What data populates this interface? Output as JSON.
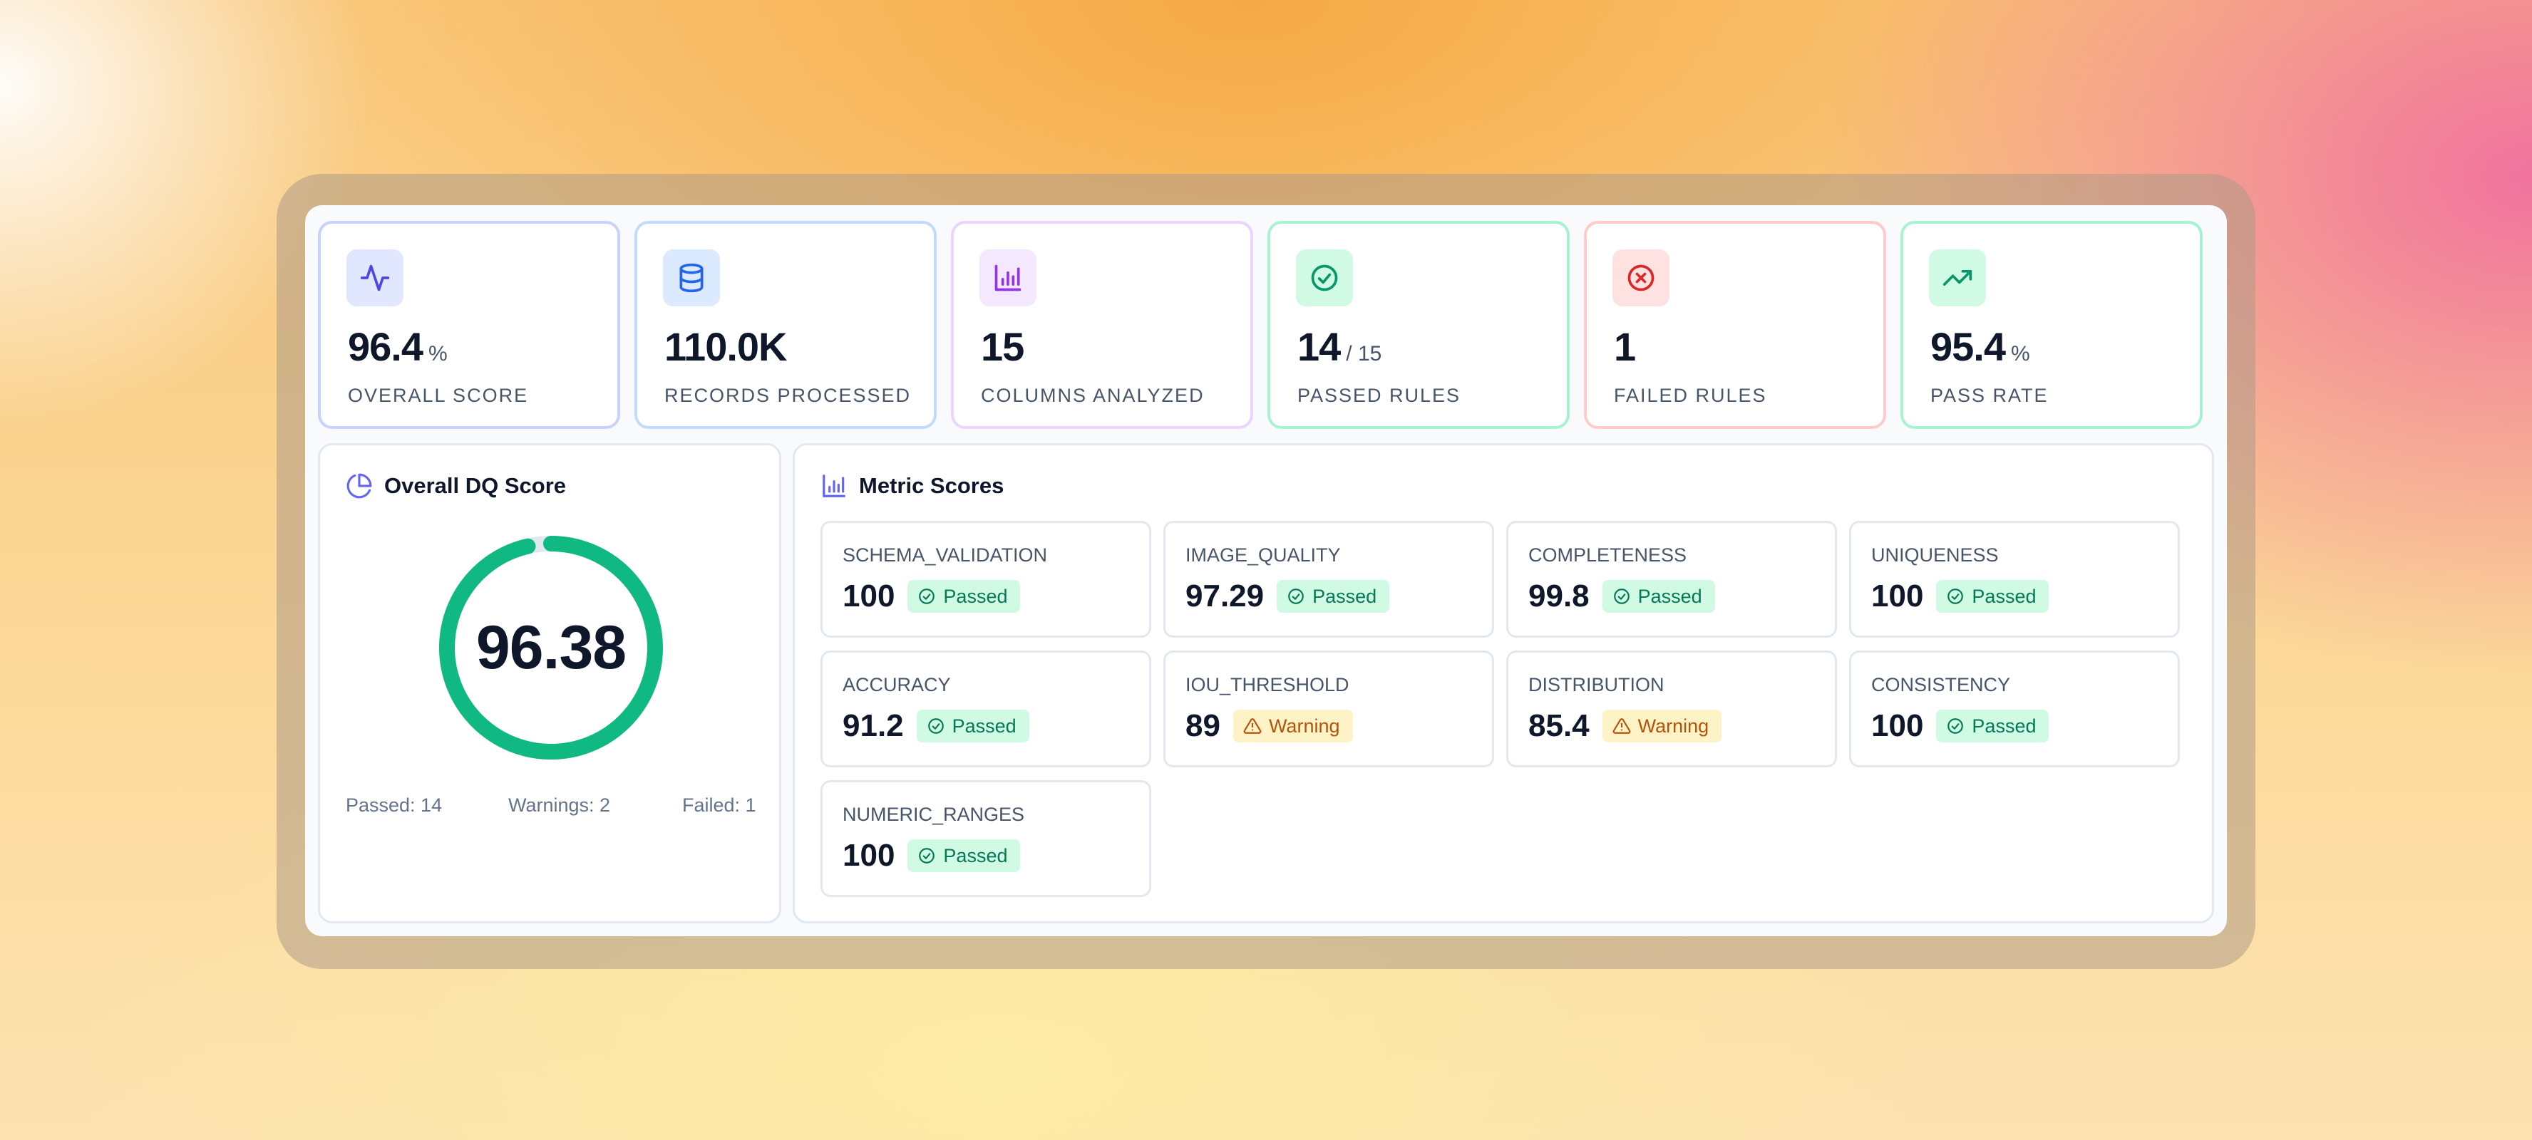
{
  "stats": [
    {
      "icon": "activity-icon",
      "value": "96.4",
      "unit": "%",
      "label": "OVERALL SCORE",
      "border": "#c7d2fe",
      "icon_bg": "#e0e7ff",
      "icon_color": "#4f46e5"
    },
    {
      "icon": "database-icon",
      "value": "110.0K",
      "unit": "",
      "label": "RECORDS PROCESSED",
      "border": "#bfdbfe",
      "icon_bg": "#dbeafe",
      "icon_color": "#2563eb"
    },
    {
      "icon": "bar-chart-icon",
      "value": "15",
      "unit": "",
      "label": "COLUMNS ANALYZED",
      "border": "#e9d5ff",
      "icon_bg": "#f3e8ff",
      "icon_color": "#9333ea"
    },
    {
      "icon": "check-circle-icon",
      "value": "14",
      "unit": "/ 15",
      "label": "PASSED RULES",
      "border": "#a7f3d0",
      "icon_bg": "#d1fae5",
      "icon_color": "#059669"
    },
    {
      "icon": "x-circle-icon",
      "value": "1",
      "unit": "",
      "label": "FAILED RULES",
      "border": "#fecaca",
      "icon_bg": "#fee2e2",
      "icon_color": "#dc2626"
    },
    {
      "icon": "trending-up-icon",
      "value": "95.4",
      "unit": "%",
      "label": "PASS RATE",
      "border": "#a7f3d0",
      "icon_bg": "#d1fae5",
      "icon_color": "#059669"
    }
  ],
  "overall": {
    "title": "Overall DQ Score",
    "icon": "pie-chart-icon",
    "score": "96.38",
    "score_fraction": 0.9638,
    "gauge_color": "#10b981",
    "passed": "Passed: 14",
    "warnings": "Warnings: 2",
    "failed": "Failed: 1"
  },
  "metrics_card": {
    "title": "Metric Scores",
    "icon": "bar-chart-icon",
    "items": [
      {
        "name": "SCHEMA_VALIDATION",
        "value": "100",
        "status": "Passed"
      },
      {
        "name": "IMAGE_QUALITY",
        "value": "97.29",
        "status": "Passed"
      },
      {
        "name": "COMPLETENESS",
        "value": "99.8",
        "status": "Passed"
      },
      {
        "name": "UNIQUENESS",
        "value": "100",
        "status": "Passed"
      },
      {
        "name": "ACCURACY",
        "value": "91.2",
        "status": "Passed"
      },
      {
        "name": "IOU_THRESHOLD",
        "value": "89",
        "status": "Warning"
      },
      {
        "name": "DISTRIBUTION",
        "value": "85.4",
        "status": "Warning"
      },
      {
        "name": "CONSISTENCY",
        "value": "100",
        "status": "Passed"
      },
      {
        "name": "NUMERIC_RANGES",
        "value": "100",
        "status": "Passed"
      }
    ]
  }
}
